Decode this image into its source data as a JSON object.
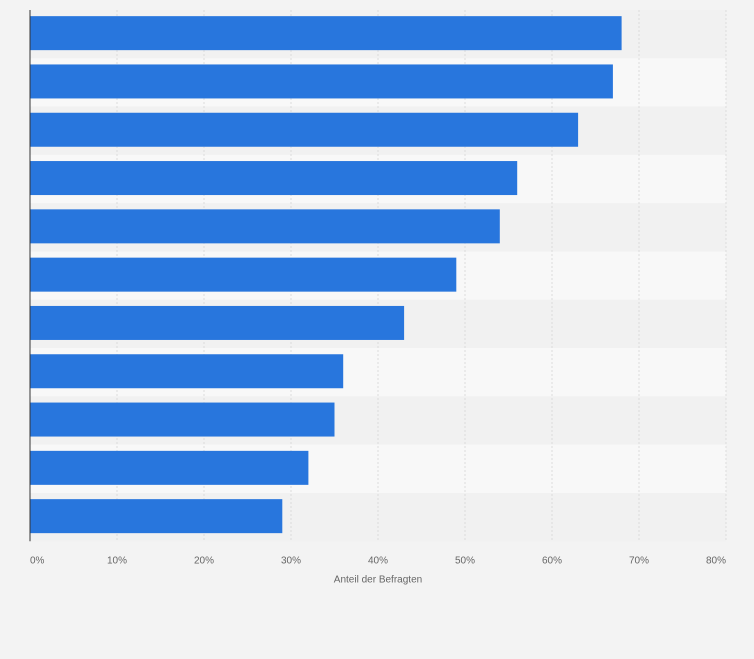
{
  "chart_data": {
    "type": "bar",
    "orientation": "horizontal",
    "categories": [
      "",
      "",
      "",
      "",
      "",
      "",
      "",
      "",
      "",
      "",
      ""
    ],
    "values": [
      68,
      67,
      63,
      56,
      54,
      49,
      43,
      36,
      35,
      32,
      29
    ],
    "unit": "%",
    "title": "",
    "xlabel": "Anteil der Befragten",
    "ylabel": "",
    "xlim": [
      0,
      80
    ],
    "xticks": [
      "0%",
      "10%",
      "20%",
      "30%",
      "40%",
      "50%",
      "60%",
      "70%",
      "80%"
    ],
    "grid": true,
    "legend": "none",
    "colors": {
      "bar": "#2876dd",
      "band_dark": "#f1f1f1",
      "band_light": "#f8f8f8",
      "grid": "#dcdcdc",
      "axis": "#333333",
      "page": "#f3f3f3"
    }
  }
}
